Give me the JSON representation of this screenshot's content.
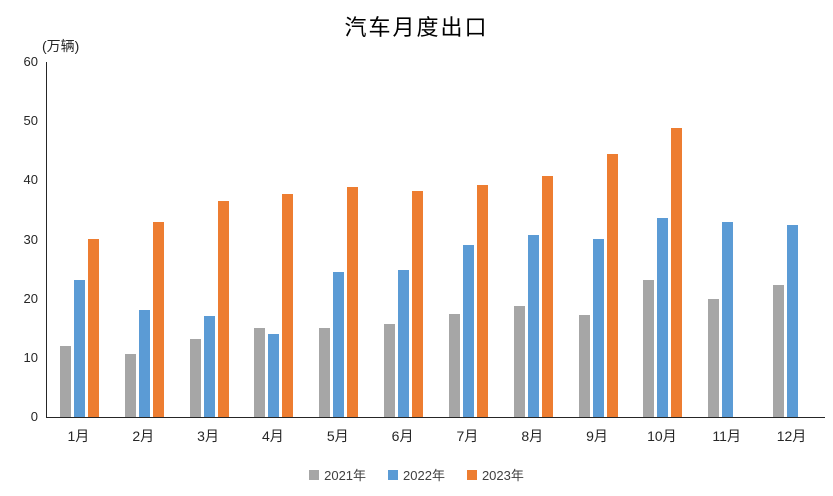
{
  "chart_data": {
    "type": "bar",
    "title": "汽车月度出口",
    "unit_label": "(万辆)",
    "categories": [
      "1月",
      "2月",
      "3月",
      "4月",
      "5月",
      "6月",
      "7月",
      "8月",
      "9月",
      "10月",
      "11月",
      "12月"
    ],
    "series": [
      {
        "name": "2021年",
        "color": "#A6A6A6",
        "values": [
          12.0,
          10.6,
          13.2,
          15.1,
          15.0,
          15.8,
          17.4,
          18.8,
          17.3,
          23.1,
          19.9,
          22.3
        ]
      },
      {
        "name": "2022年",
        "color": "#5B9BD5",
        "values": [
          23.1,
          18.1,
          17.1,
          14.1,
          24.5,
          24.9,
          29.0,
          30.8,
          30.1,
          33.7,
          33.0,
          32.5
        ]
      },
      {
        "name": "2023年",
        "color": "#ED7D31",
        "values": [
          30.1,
          32.9,
          36.5,
          37.7,
          38.9,
          38.2,
          39.2,
          40.8,
          44.4,
          48.8,
          null,
          null
        ]
      }
    ],
    "y_axis": {
      "min": 0,
      "max": 60,
      "step": 10,
      "ticks": [
        0,
        10,
        20,
        30,
        40,
        50,
        60
      ]
    },
    "grid": false,
    "legend_position": "bottom",
    "axis_color": "#262626",
    "background_color": "#FFFFFF"
  }
}
